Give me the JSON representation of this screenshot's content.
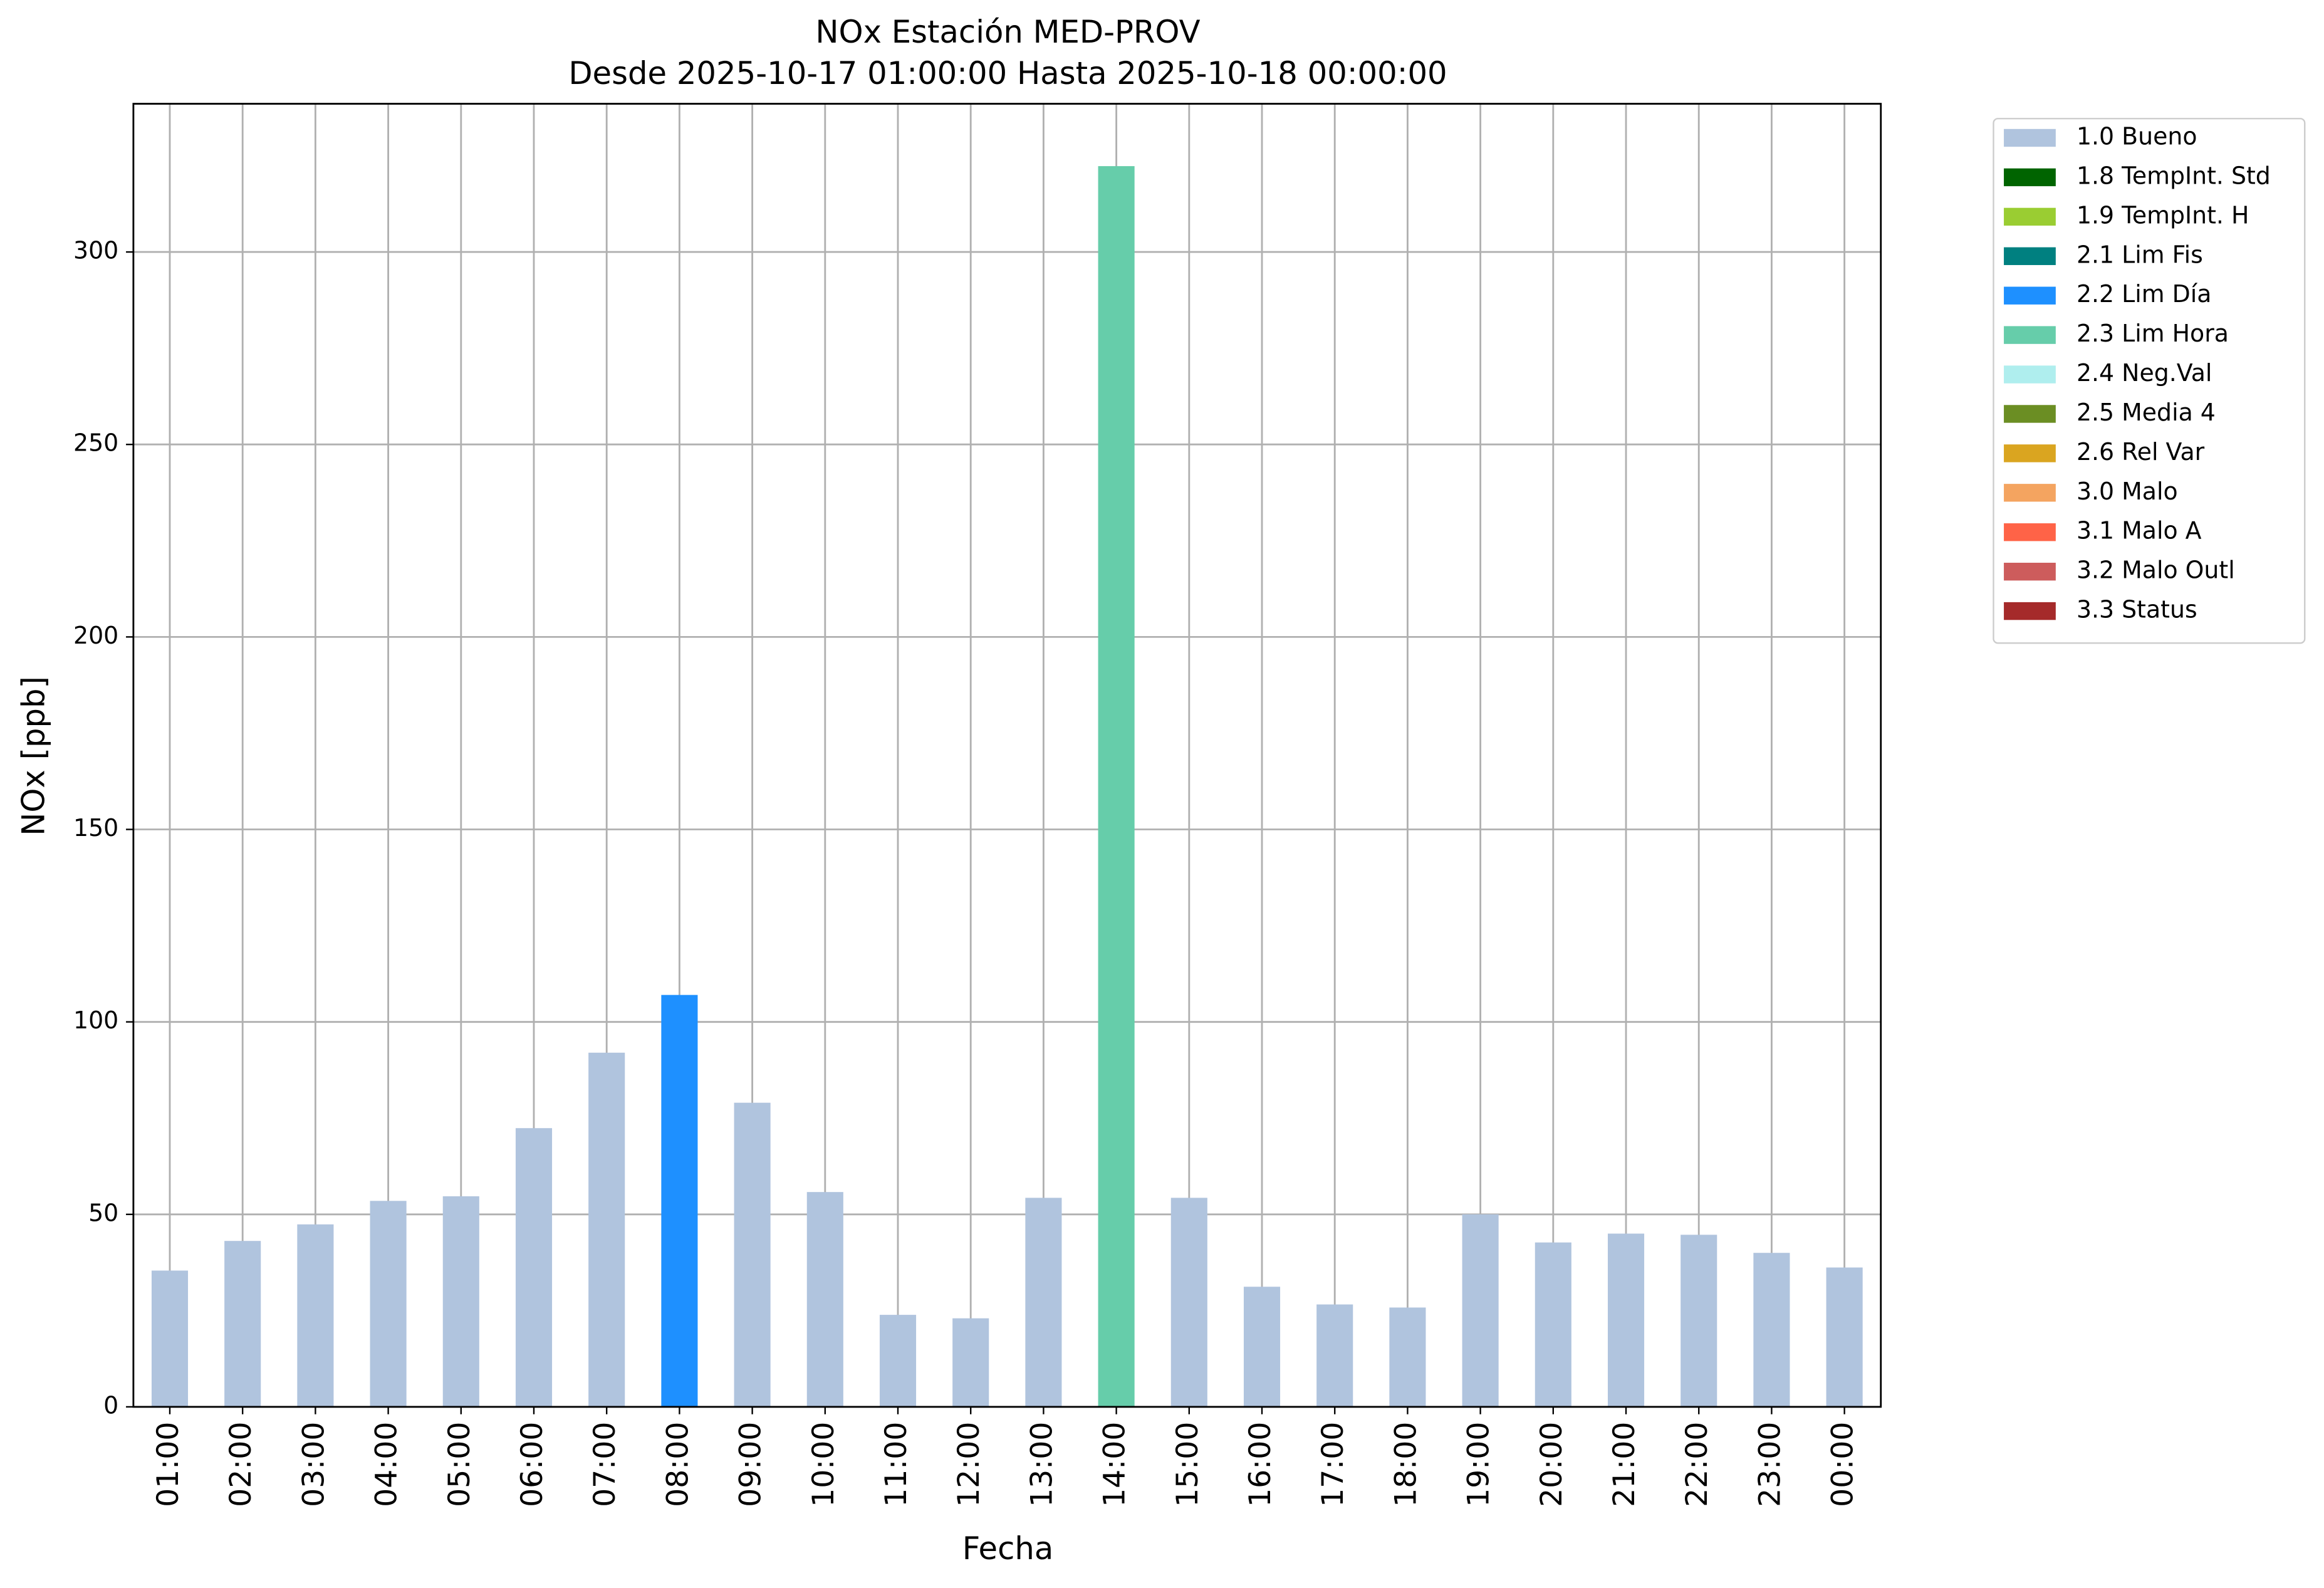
{
  "chart_data": {
    "type": "stacked-bar",
    "title": "NOx Estación MED-PROV",
    "subtitle": "Desde 2025-10-17 01:00:00 Hasta 2025-10-18 00:00:00",
    "x_label": "Fecha",
    "y_label": "NOx [ppb]",
    "categories": [
      "01:00",
      "02:00",
      "03:00",
      "04:00",
      "05:00",
      "06:00",
      "07:00",
      "08:00",
      "09:00",
      "10:00",
      "11:00",
      "12:00",
      "13:00",
      "14:00",
      "15:00",
      "16:00",
      "17:00",
      "18:00",
      "19:00",
      "20:00",
      "21:00",
      "22:00",
      "23:00",
      "00:00"
    ],
    "series": [
      {
        "name": "1.0 Bueno",
        "color": "#b0c4de",
        "values": [
          35.4,
          43.1,
          47.4,
          53.5,
          54.7,
          72.4,
          92,
          null,
          79,
          55.8,
          23.9,
          23,
          54.3,
          null,
          54.3,
          31.2,
          26.6,
          25.8,
          50,
          42.7,
          45,
          44.7,
          40,
          36.2
        ]
      },
      {
        "name": "1.8 TempInt. Std",
        "color": "#006400",
        "values": [
          null,
          null,
          null,
          null,
          null,
          null,
          null,
          null,
          null,
          null,
          null,
          null,
          null,
          null,
          null,
          null,
          null,
          null,
          null,
          null,
          null,
          null,
          null,
          null
        ]
      },
      {
        "name": "1.9 TempInt. H",
        "color": "#9acd32",
        "values": [
          null,
          null,
          null,
          null,
          null,
          null,
          null,
          null,
          null,
          null,
          null,
          null,
          null,
          null,
          null,
          null,
          null,
          null,
          null,
          null,
          null,
          null,
          null,
          null
        ]
      },
      {
        "name": "2.1 Lim Fis",
        "color": "#008080",
        "values": [
          null,
          null,
          null,
          null,
          null,
          null,
          null,
          null,
          null,
          null,
          null,
          null,
          null,
          null,
          null,
          null,
          null,
          null,
          null,
          null,
          null,
          null,
          null,
          null
        ]
      },
      {
        "name": "2.2 Lim Día",
        "color": "#1e90ff",
        "values": [
          null,
          null,
          null,
          null,
          null,
          null,
          null,
          107,
          null,
          null,
          null,
          null,
          null,
          null,
          null,
          null,
          null,
          null,
          null,
          null,
          null,
          null,
          null,
          null
        ]
      },
      {
        "name": "2.3 Lim Hora",
        "color": "#66cdaa",
        "values": [
          null,
          null,
          null,
          null,
          null,
          null,
          null,
          null,
          null,
          null,
          null,
          null,
          null,
          322.3,
          null,
          null,
          null,
          null,
          null,
          null,
          null,
          null,
          null,
          null
        ]
      },
      {
        "name": "2.4 Neg.Val",
        "color": "#afeeee",
        "values": [
          null,
          null,
          null,
          null,
          null,
          null,
          null,
          null,
          null,
          null,
          null,
          null,
          null,
          null,
          null,
          null,
          null,
          null,
          null,
          null,
          null,
          null,
          null,
          null
        ]
      },
      {
        "name": "2.5 Media 4",
        "color": "#6b8e23",
        "values": [
          null,
          null,
          null,
          null,
          null,
          null,
          null,
          null,
          null,
          null,
          null,
          null,
          null,
          null,
          null,
          null,
          null,
          null,
          null,
          null,
          null,
          null,
          null,
          null
        ]
      },
      {
        "name": "2.6 Rel Var",
        "color": "#daa520",
        "values": [
          null,
          null,
          null,
          null,
          null,
          null,
          null,
          null,
          null,
          null,
          null,
          null,
          null,
          null,
          null,
          null,
          null,
          null,
          null,
          null,
          null,
          null,
          null,
          null
        ]
      },
      {
        "name": "3.0 Malo",
        "color": "#f4a460",
        "values": [
          null,
          null,
          null,
          null,
          null,
          null,
          null,
          null,
          null,
          null,
          null,
          null,
          null,
          null,
          null,
          null,
          null,
          null,
          null,
          null,
          null,
          null,
          null,
          null
        ]
      },
      {
        "name": "3.1 Malo A",
        "color": "#ff6347",
        "values": [
          null,
          null,
          null,
          null,
          null,
          null,
          null,
          null,
          null,
          null,
          null,
          null,
          null,
          null,
          null,
          null,
          null,
          null,
          null,
          null,
          null,
          null,
          null,
          null
        ]
      },
      {
        "name": "3.2 Malo Outl",
        "color": "#cd5c5c",
        "values": [
          null,
          null,
          null,
          null,
          null,
          null,
          null,
          null,
          null,
          null,
          null,
          null,
          null,
          null,
          null,
          null,
          null,
          null,
          null,
          null,
          null,
          null,
          null,
          null
        ]
      },
      {
        "name": "3.3 Status",
        "color": "#a52a2a",
        "values": [
          null,
          null,
          null,
          null,
          null,
          null,
          null,
          null,
          null,
          null,
          null,
          null,
          null,
          null,
          null,
          null,
          null,
          null,
          null,
          null,
          null,
          null,
          null,
          null
        ]
      }
    ],
    "ylim": [
      0,
      338.5
    ],
    "yticks": [
      0,
      50,
      100,
      150,
      200,
      250,
      300
    ],
    "grid": true,
    "legend": "outside upper right"
  }
}
